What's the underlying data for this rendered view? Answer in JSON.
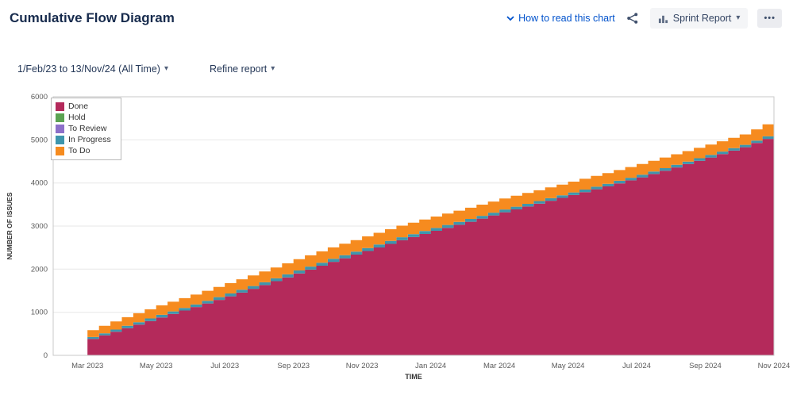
{
  "header": {
    "title": "Cumulative Flow Diagram",
    "how_to_read": "How to read this chart",
    "sprint_report_label": "Sprint Report"
  },
  "icons": {
    "caret_down": "▾",
    "more": "•••"
  },
  "filters": {
    "date_range": "1/Feb/23 to 13/Nov/24 (All Time)",
    "refine": "Refine report"
  },
  "chart_data": {
    "type": "area",
    "stacked": true,
    "title": "Cumulative Flow Diagram",
    "xlabel": "TIME",
    "ylabel": "NUMBER OF ISSUES",
    "ylim": [
      0,
      6000
    ],
    "y_ticks": [
      0,
      1000,
      2000,
      3000,
      4000,
      5000,
      6000
    ],
    "grid": "horizontal",
    "legend_position": "top-left-inside",
    "months": [
      "Feb 2023",
      "Mar 2023",
      "Apr 2023",
      "May 2023",
      "Jun 2023",
      "Jul 2023",
      "Aug 2023",
      "Sep 2023",
      "Oct 2023",
      "Nov 2023",
      "Dec 2023",
      "Jan 2024",
      "Feb 2024",
      "Mar 2024",
      "Apr 2024",
      "May 2024",
      "Jun 2024",
      "Jul 2024",
      "Aug 2024",
      "Sep 2024",
      "Oct 2024",
      "Nov 2024"
    ],
    "x_ticks": [
      {
        "i": 1,
        "label": "Mar 2023"
      },
      {
        "i": 3,
        "label": "May 2023"
      },
      {
        "i": 5,
        "label": "Jul 2023"
      },
      {
        "i": 7,
        "label": "Sep 2023"
      },
      {
        "i": 9,
        "label": "Nov 2023"
      },
      {
        "i": 11,
        "label": "Jan 2024"
      },
      {
        "i": 13,
        "label": "Mar 2024"
      },
      {
        "i": 15,
        "label": "May 2024"
      },
      {
        "i": 17,
        "label": "Jul 2024"
      },
      {
        "i": 19,
        "label": "Sep 2024"
      },
      {
        "i": 21,
        "label": "Nov 2024"
      }
    ],
    "series": [
      {
        "name": "Done",
        "color": "#b42a5b",
        "values": [
          0,
          380,
          630,
          880,
          1120,
          1370,
          1630,
          1900,
          2170,
          2420,
          2670,
          2890,
          3100,
          3320,
          3520,
          3720,
          3920,
          4130,
          4360,
          4590,
          4830,
          5120
        ]
      },
      {
        "name": "Hold",
        "color": "#5ba352",
        "values": [
          0,
          0,
          0,
          0,
          0,
          0,
          0,
          0,
          0,
          0,
          0,
          0,
          0,
          0,
          0,
          0,
          0,
          0,
          0,
          0,
          0,
          0
        ]
      },
      {
        "name": "To Review",
        "color": "#8d70c9",
        "values": [
          0,
          0,
          0,
          0,
          0,
          0,
          0,
          0,
          0,
          0,
          0,
          0,
          0,
          0,
          0,
          0,
          0,
          0,
          0,
          0,
          0,
          0
        ]
      },
      {
        "name": "In Progress",
        "color": "#3e96ad",
        "values": [
          0,
          45,
          55,
          60,
          60,
          65,
          65,
          70,
          70,
          70,
          70,
          65,
          65,
          65,
          60,
          60,
          60,
          60,
          60,
          60,
          55,
          60
        ]
      },
      {
        "name": "To Do",
        "color": "#f68b1f",
        "values": [
          0,
          160,
          200,
          220,
          230,
          240,
          250,
          260,
          265,
          270,
          270,
          265,
          260,
          255,
          250,
          250,
          250,
          250,
          245,
          240,
          240,
          300
        ]
      }
    ]
  }
}
